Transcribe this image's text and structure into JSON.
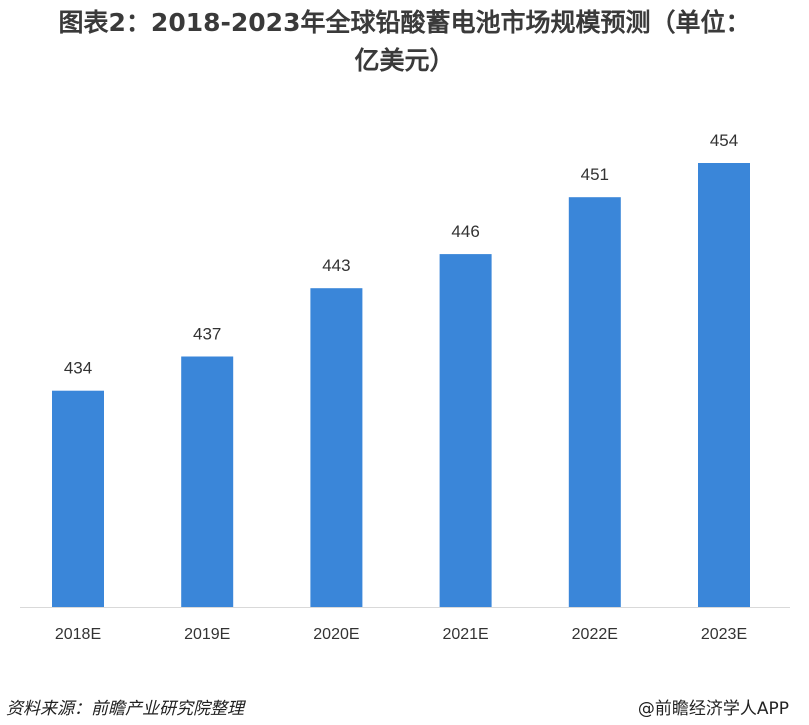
{
  "title": {
    "line1": "图表2：2018-2023年全球铅酸蓄电池市场规模预测（单位：",
    "line2": "亿美元）"
  },
  "footer": {
    "source": "资料来源：前瞻产业研究院整理",
    "brand": "@前瞻经济学人APP"
  },
  "colors": {
    "bar": "#3A86D9",
    "axis": "#d9d9d9"
  },
  "chart_data": {
    "type": "bar",
    "title": "图表2：2018-2023年全球铅酸蓄电池市场规模预测（单位：亿美元）",
    "categories": [
      "2018E",
      "2019E",
      "2020E",
      "2021E",
      "2022E",
      "2023E"
    ],
    "values": [
      434,
      437,
      443,
      446,
      451,
      454
    ],
    "xlabel": "",
    "ylabel": "",
    "ylim": [
      415,
      456
    ],
    "grid": false,
    "legend": "none"
  }
}
